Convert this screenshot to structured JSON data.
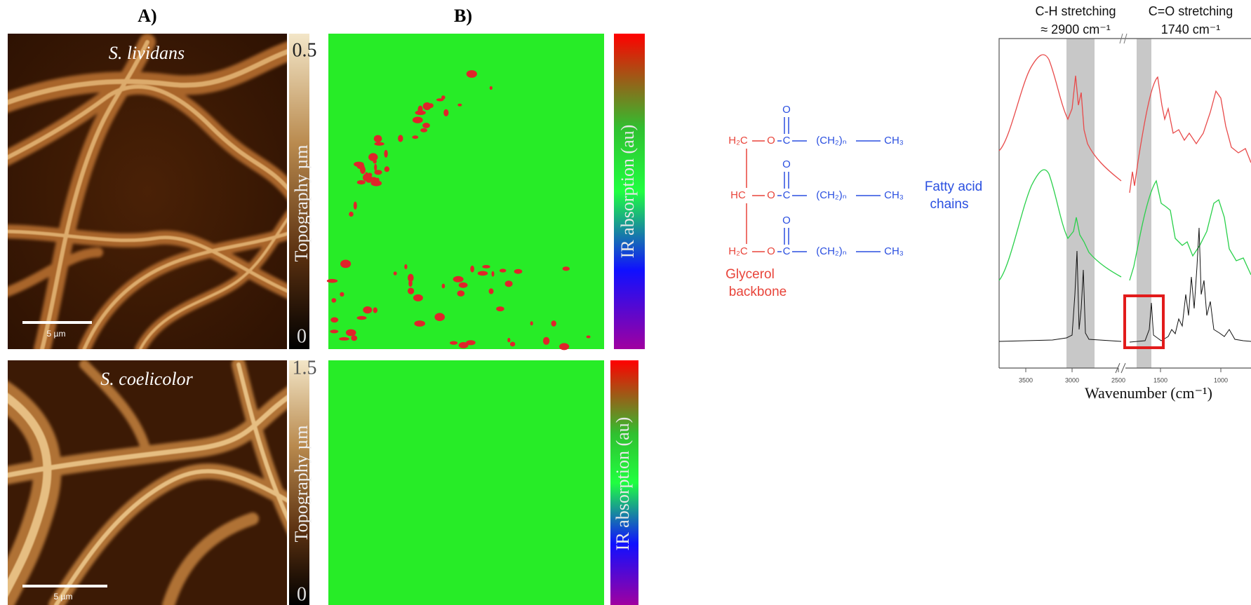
{
  "panel_a": {
    "label": "A)",
    "images": [
      {
        "title": "S. lividans",
        "scale_bar": "5 µm",
        "colorbar": {
          "max": 0.5,
          "min": 0,
          "label": "Topography µm"
        }
      },
      {
        "title": "S. coelicolor",
        "scale_bar": "5 µm",
        "colorbar": {
          "max": 1.5,
          "min": 0,
          "label": "Topography µm"
        }
      }
    ]
  },
  "panel_b": {
    "label": "B)",
    "maps": [
      {
        "colorbar_label": "IR absorption (au)"
      },
      {
        "colorbar_label": "IR absorption (au)"
      }
    ]
  },
  "structure": {
    "rows": [
      {
        "carbon": "H₂C",
        "oxygen": "O",
        "carbonyl_o": "O",
        "carbonyl_c": "C",
        "chain": "(CH₂)ₙ",
        "terminal": "CH₃"
      },
      {
        "carbon": "HC",
        "oxygen": "O",
        "carbonyl_o": "O",
        "carbonyl_c": "C",
        "chain": "(CH₂)ₙ",
        "terminal": "CH₃"
      },
      {
        "carbon": "H₂C",
        "oxygen": "O",
        "carbonyl_o": "O",
        "carbonyl_c": "C",
        "chain": "(CH₂)ₙ",
        "terminal": "CH₃"
      }
    ],
    "glycerol_label": [
      "Glycerol",
      "backbone"
    ],
    "fatty_acid_label": [
      "Fatty acid",
      "chains"
    ]
  },
  "spectrum": {
    "bands": [
      {
        "title": "C-H stretching",
        "position": "≈ 2900 cm⁻¹"
      },
      {
        "title": "C=O stretching",
        "position": "1740 cm⁻¹"
      }
    ],
    "xlabel": "Wavenumber (cm⁻¹)",
    "xticks": [
      3500,
      3000,
      2500,
      1500,
      1000
    ]
  }
}
